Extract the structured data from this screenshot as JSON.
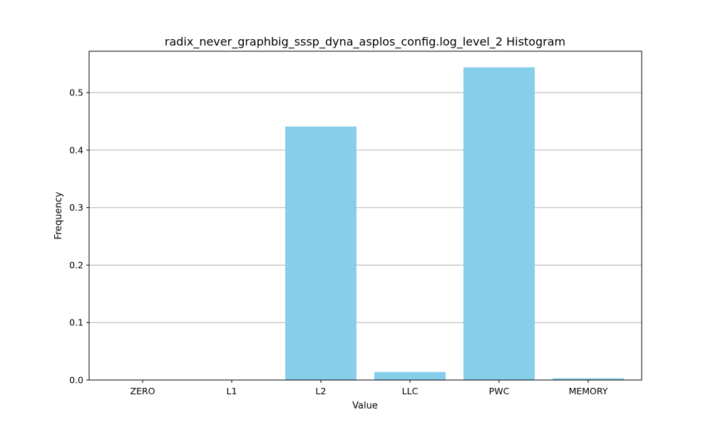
{
  "chart_data": {
    "type": "bar",
    "title": "radix_never_graphbig_sssp_dyna_asplos_config.log_level_2 Histogram",
    "xlabel": "Value",
    "ylabel": "Frequency",
    "categories": [
      "ZERO",
      "L1",
      "L2",
      "LLC",
      "PWC",
      "MEMORY"
    ],
    "values": [
      0.0,
      0.0,
      0.441,
      0.014,
      0.544,
      0.003
    ],
    "ylim": [
      0,
      0.572
    ],
    "yticks": [
      0.0,
      0.1,
      0.2,
      0.3,
      0.4,
      0.5
    ],
    "ytick_labels": [
      "0.0",
      "0.1",
      "0.2",
      "0.3",
      "0.4",
      "0.5"
    ],
    "grid": "y-axis",
    "bar_color": "#87CEEB",
    "grid_color": "#b0b0b0"
  }
}
